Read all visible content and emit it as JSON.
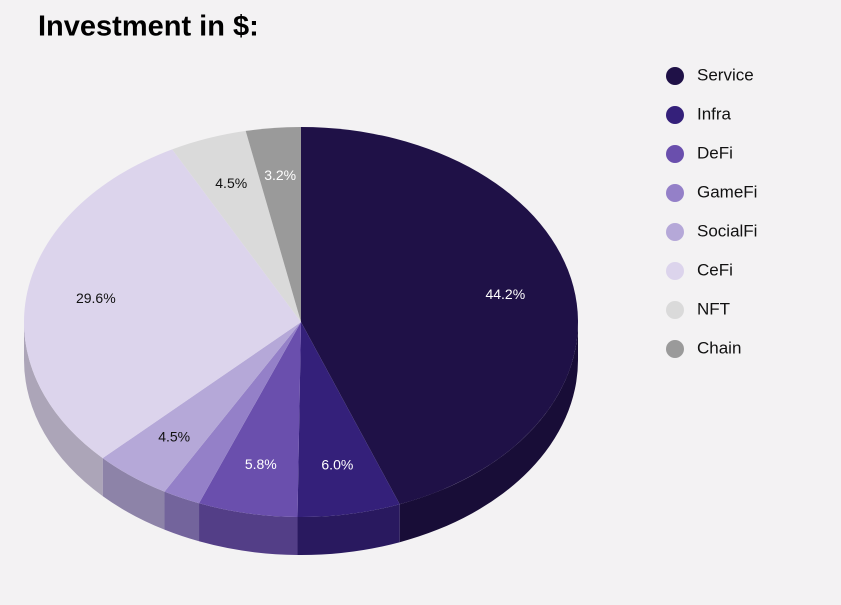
{
  "chart_data": {
    "type": "pie",
    "title": "Investment in $:",
    "categories": [
      "Service",
      "Infra",
      "DeFi",
      "GameFi",
      "SocialFi",
      "CeFi",
      "NFT",
      "Chain"
    ],
    "values": [
      44.2,
      6.0,
      5.8,
      2.2,
      4.5,
      29.6,
      4.5,
      3.2
    ],
    "value_labels": [
      "44.2%",
      "6.0%",
      "5.8%",
      null,
      "4.5%",
      "29.6%",
      "4.5%",
      "3.2%"
    ],
    "colors": [
      "#1f1147",
      "#34207a",
      "#6a4fad",
      "#9480c8",
      "#b5a8d8",
      "#dcd4ec",
      "#dadada",
      "#9a9a9a"
    ],
    "legend": "right"
  }
}
